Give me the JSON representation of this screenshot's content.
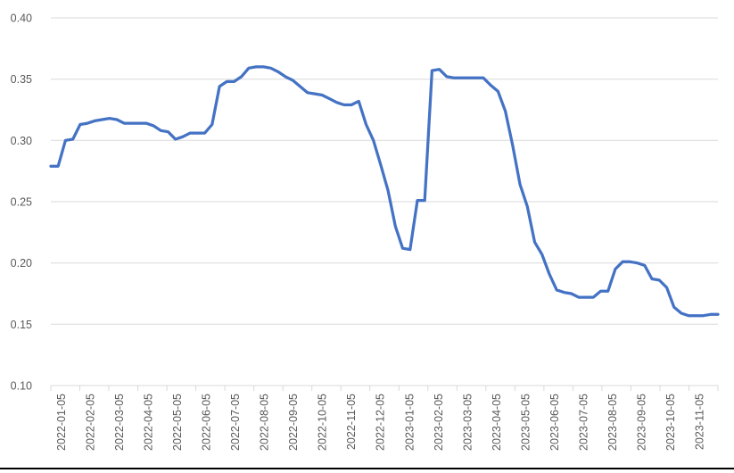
{
  "chart_data": {
    "type": "line",
    "title": "",
    "xlabel": "",
    "ylabel": "",
    "grid": true,
    "legend": false,
    "ylim": [
      0.1,
      0.4
    ],
    "y_ticks": [
      0.1,
      0.15,
      0.2,
      0.25,
      0.3,
      0.35,
      0.4
    ],
    "y_tick_labels": [
      "0.10",
      "0.15",
      "0.20",
      "0.25",
      "0.30",
      "0.35",
      "0.40"
    ],
    "x_tick_labels": [
      "2022-01-05",
      "2022-02-05",
      "2022-03-05",
      "2022-04-05",
      "2022-05-05",
      "2022-06-05",
      "2022-07-05",
      "2022-08-05",
      "2022-09-05",
      "2022-10-05",
      "2022-11-05",
      "2022-12-05",
      "2023-01-05",
      "2023-02-05",
      "2023-03-05",
      "2023-04-05",
      "2023-05-05",
      "2023-06-05",
      "2023-07-05",
      "2023-08-05",
      "2023-09-05",
      "2023-10-05",
      "2023-11-05"
    ],
    "x": [
      "2022-01-05",
      "2022-01-12",
      "2022-01-19",
      "2022-01-26",
      "2022-02-05",
      "2022-02-12",
      "2022-02-19",
      "2022-02-26",
      "2022-03-05",
      "2022-03-12",
      "2022-03-19",
      "2022-03-26",
      "2022-04-05",
      "2022-04-12",
      "2022-04-19",
      "2022-04-26",
      "2022-05-05",
      "2022-05-12",
      "2022-05-19",
      "2022-05-26",
      "2022-06-05",
      "2022-06-12",
      "2022-06-19",
      "2022-06-26",
      "2022-07-05",
      "2022-07-12",
      "2022-07-19",
      "2022-07-26",
      "2022-08-05",
      "2022-08-12",
      "2022-08-19",
      "2022-08-26",
      "2022-09-05",
      "2022-09-12",
      "2022-09-19",
      "2022-09-26",
      "2022-10-05",
      "2022-10-12",
      "2022-10-19",
      "2022-10-26",
      "2022-11-05",
      "2022-11-12",
      "2022-11-19",
      "2022-11-26",
      "2022-12-05",
      "2022-12-12",
      "2022-12-19",
      "2022-12-26",
      "2023-01-05",
      "2023-01-12",
      "2023-01-19",
      "2023-01-26",
      "2023-02-05",
      "2023-02-12",
      "2023-02-19",
      "2023-02-26",
      "2023-03-05",
      "2023-03-12",
      "2023-03-19",
      "2023-03-26",
      "2023-04-05",
      "2023-04-12",
      "2023-04-19",
      "2023-04-26",
      "2023-05-05",
      "2023-05-12",
      "2023-05-19",
      "2023-05-26",
      "2023-06-05",
      "2023-06-12",
      "2023-06-19",
      "2023-06-26",
      "2023-07-05",
      "2023-07-12",
      "2023-07-19",
      "2023-07-26",
      "2023-08-05",
      "2023-08-12",
      "2023-08-19",
      "2023-08-26",
      "2023-09-05",
      "2023-09-12",
      "2023-09-19",
      "2023-09-26",
      "2023-10-05",
      "2023-10-12",
      "2023-10-19",
      "2023-10-26",
      "2023-11-05",
      "2023-11-12",
      "2023-11-19",
      "2023-11-26"
    ],
    "values": [
      0.279,
      0.279,
      0.3,
      0.301,
      0.313,
      0.314,
      0.316,
      0.317,
      0.318,
      0.317,
      0.314,
      0.314,
      0.314,
      0.314,
      0.312,
      0.308,
      0.307,
      0.301,
      0.303,
      0.306,
      0.306,
      0.306,
      0.313,
      0.344,
      0.348,
      0.348,
      0.352,
      0.359,
      0.36,
      0.36,
      0.359,
      0.356,
      0.352,
      0.349,
      0.344,
      0.339,
      0.338,
      0.337,
      0.334,
      0.331,
      0.329,
      0.329,
      0.332,
      0.313,
      0.3,
      0.28,
      0.259,
      0.23,
      0.212,
      0.211,
      0.251,
      0.251,
      0.357,
      0.358,
      0.352,
      0.351,
      0.351,
      0.351,
      0.351,
      0.351,
      0.345,
      0.34,
      0.324,
      0.296,
      0.264,
      0.246,
      0.217,
      0.207,
      0.191,
      0.178,
      0.176,
      0.175,
      0.172,
      0.172,
      0.172,
      0.177,
      0.177,
      0.195,
      0.201,
      0.201,
      0.2,
      0.198,
      0.187,
      0.186,
      0.18,
      0.164,
      0.159,
      0.157,
      0.157,
      0.157,
      0.158,
      0.158
    ],
    "line_color": "#4472C4",
    "gridline_color": "#D9D9D9",
    "axis_label_color": "#595959",
    "bottom_rule_color": "#000000"
  }
}
